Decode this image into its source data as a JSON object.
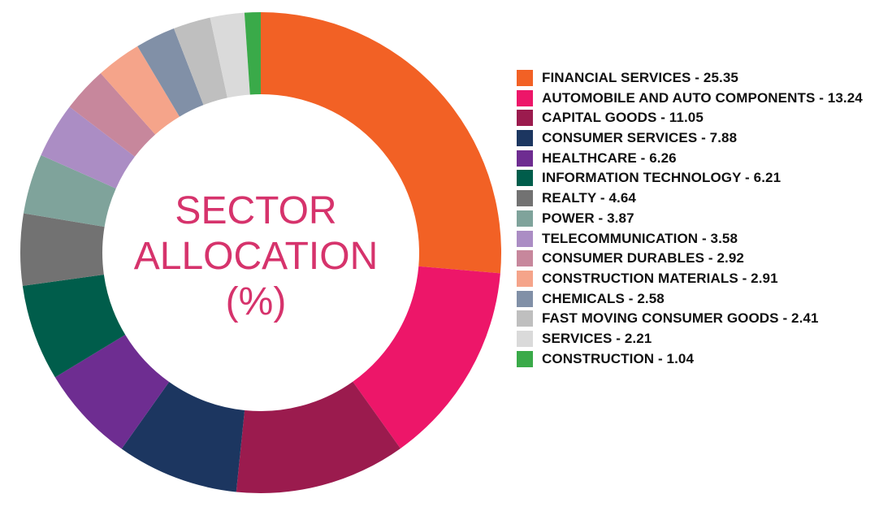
{
  "chart_data": {
    "type": "pie",
    "title_lines": [
      "SECTOR",
      "ALLOCATION",
      "(%)"
    ],
    "series": [
      {
        "name": "FINANCIAL SERVICES",
        "value": 25.35,
        "label": "FINANCIAL SERVICES - 25.35",
        "color": "#f26125"
      },
      {
        "name": "AUTOMOBILE AND AUTO COMPONENTS",
        "value": 13.24,
        "label": "AUTOMOBILE AND AUTO COMPONENTS - 13.24",
        "color": "#ed1669"
      },
      {
        "name": "CAPITAL GOODS",
        "value": 11.05,
        "label": "CAPITAL GOODS - 11.05",
        "color": "#9b1b4e"
      },
      {
        "name": "CONSUMER SERVICES",
        "value": 7.88,
        "label": "CONSUMER SERVICES - 7.88",
        "color": "#1c3660"
      },
      {
        "name": "HEALTHCARE",
        "value": 6.26,
        "label": "HEALTHCARE - 6.26",
        "color": "#6e2d91"
      },
      {
        "name": "INFORMATION TECHNOLOGY",
        "value": 6.21,
        "label": "INFORMATION TECHNOLOGY - 6.21",
        "color": "#005d4b"
      },
      {
        "name": "REALTY",
        "value": 4.64,
        "label": "REALTY - 4.64",
        "color": "#727272"
      },
      {
        "name": "POWER",
        "value": 3.87,
        "label": "POWER - 3.87",
        "color": "#7fa39b"
      },
      {
        "name": "TELECOMMUNICATION",
        "value": 3.58,
        "label": "TELECOMMUNICATION - 3.58",
        "color": "#ab8dc4"
      },
      {
        "name": "CONSUMER DURABLES",
        "value": 2.92,
        "label": "CONSUMER DURABLES - 2.92",
        "color": "#c7879c"
      },
      {
        "name": "CONSTRUCTION MATERIALS",
        "value": 2.91,
        "label": "CONSTRUCTION MATERIALS - 2.91",
        "color": "#f5a48a"
      },
      {
        "name": "CHEMICALS",
        "value": 2.58,
        "label": "CHEMICALS - 2.58",
        "color": "#8190a7"
      },
      {
        "name": "FAST MOVING CONSUMER GOODS",
        "value": 2.41,
        "label": "FAST MOVING CONSUMER GOODS - 2.41",
        "color": "#bfbfbf"
      },
      {
        "name": "SERVICES",
        "value": 2.21,
        "label": "SERVICES - 2.21",
        "color": "#dadada"
      },
      {
        "name": "CONSTRUCTION",
        "value": 1.04,
        "label": "CONSTRUCTION - 1.04",
        "color": "#3aaa49"
      }
    ],
    "start_angle": "top",
    "direction": "clockwise",
    "legend_position": "right",
    "title_color": "#d6336c"
  }
}
